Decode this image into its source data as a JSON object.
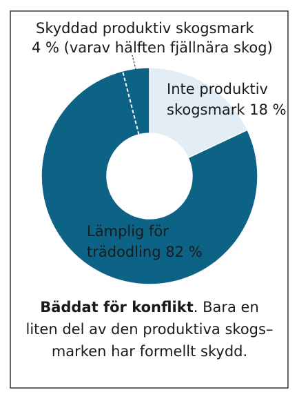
{
  "chart_data": {
    "type": "donut",
    "slices": [
      {
        "label_lines": [
          "Inte produktiv",
          "skogsmark 18 %"
        ],
        "value": 18,
        "color": "#e2edf5",
        "text_color": "#0d5f80"
      },
      {
        "label_lines": [
          "Lämplig för",
          "trädodling 82 %"
        ],
        "value": 82,
        "color": "#0c6386",
        "text_color": "#ffffff"
      }
    ],
    "annotation": {
      "label_lines": [
        "Skyddad produktiv skogsmark",
        "4 % (varav hälften fjällnära skog)"
      ],
      "value": 4
    },
    "caption": {
      "lead": "Bäddat för konflikt",
      "lines": [
        ". Bara en",
        "liten del av den produktiva skogs–",
        "marken har formellt skydd."
      ]
    }
  }
}
